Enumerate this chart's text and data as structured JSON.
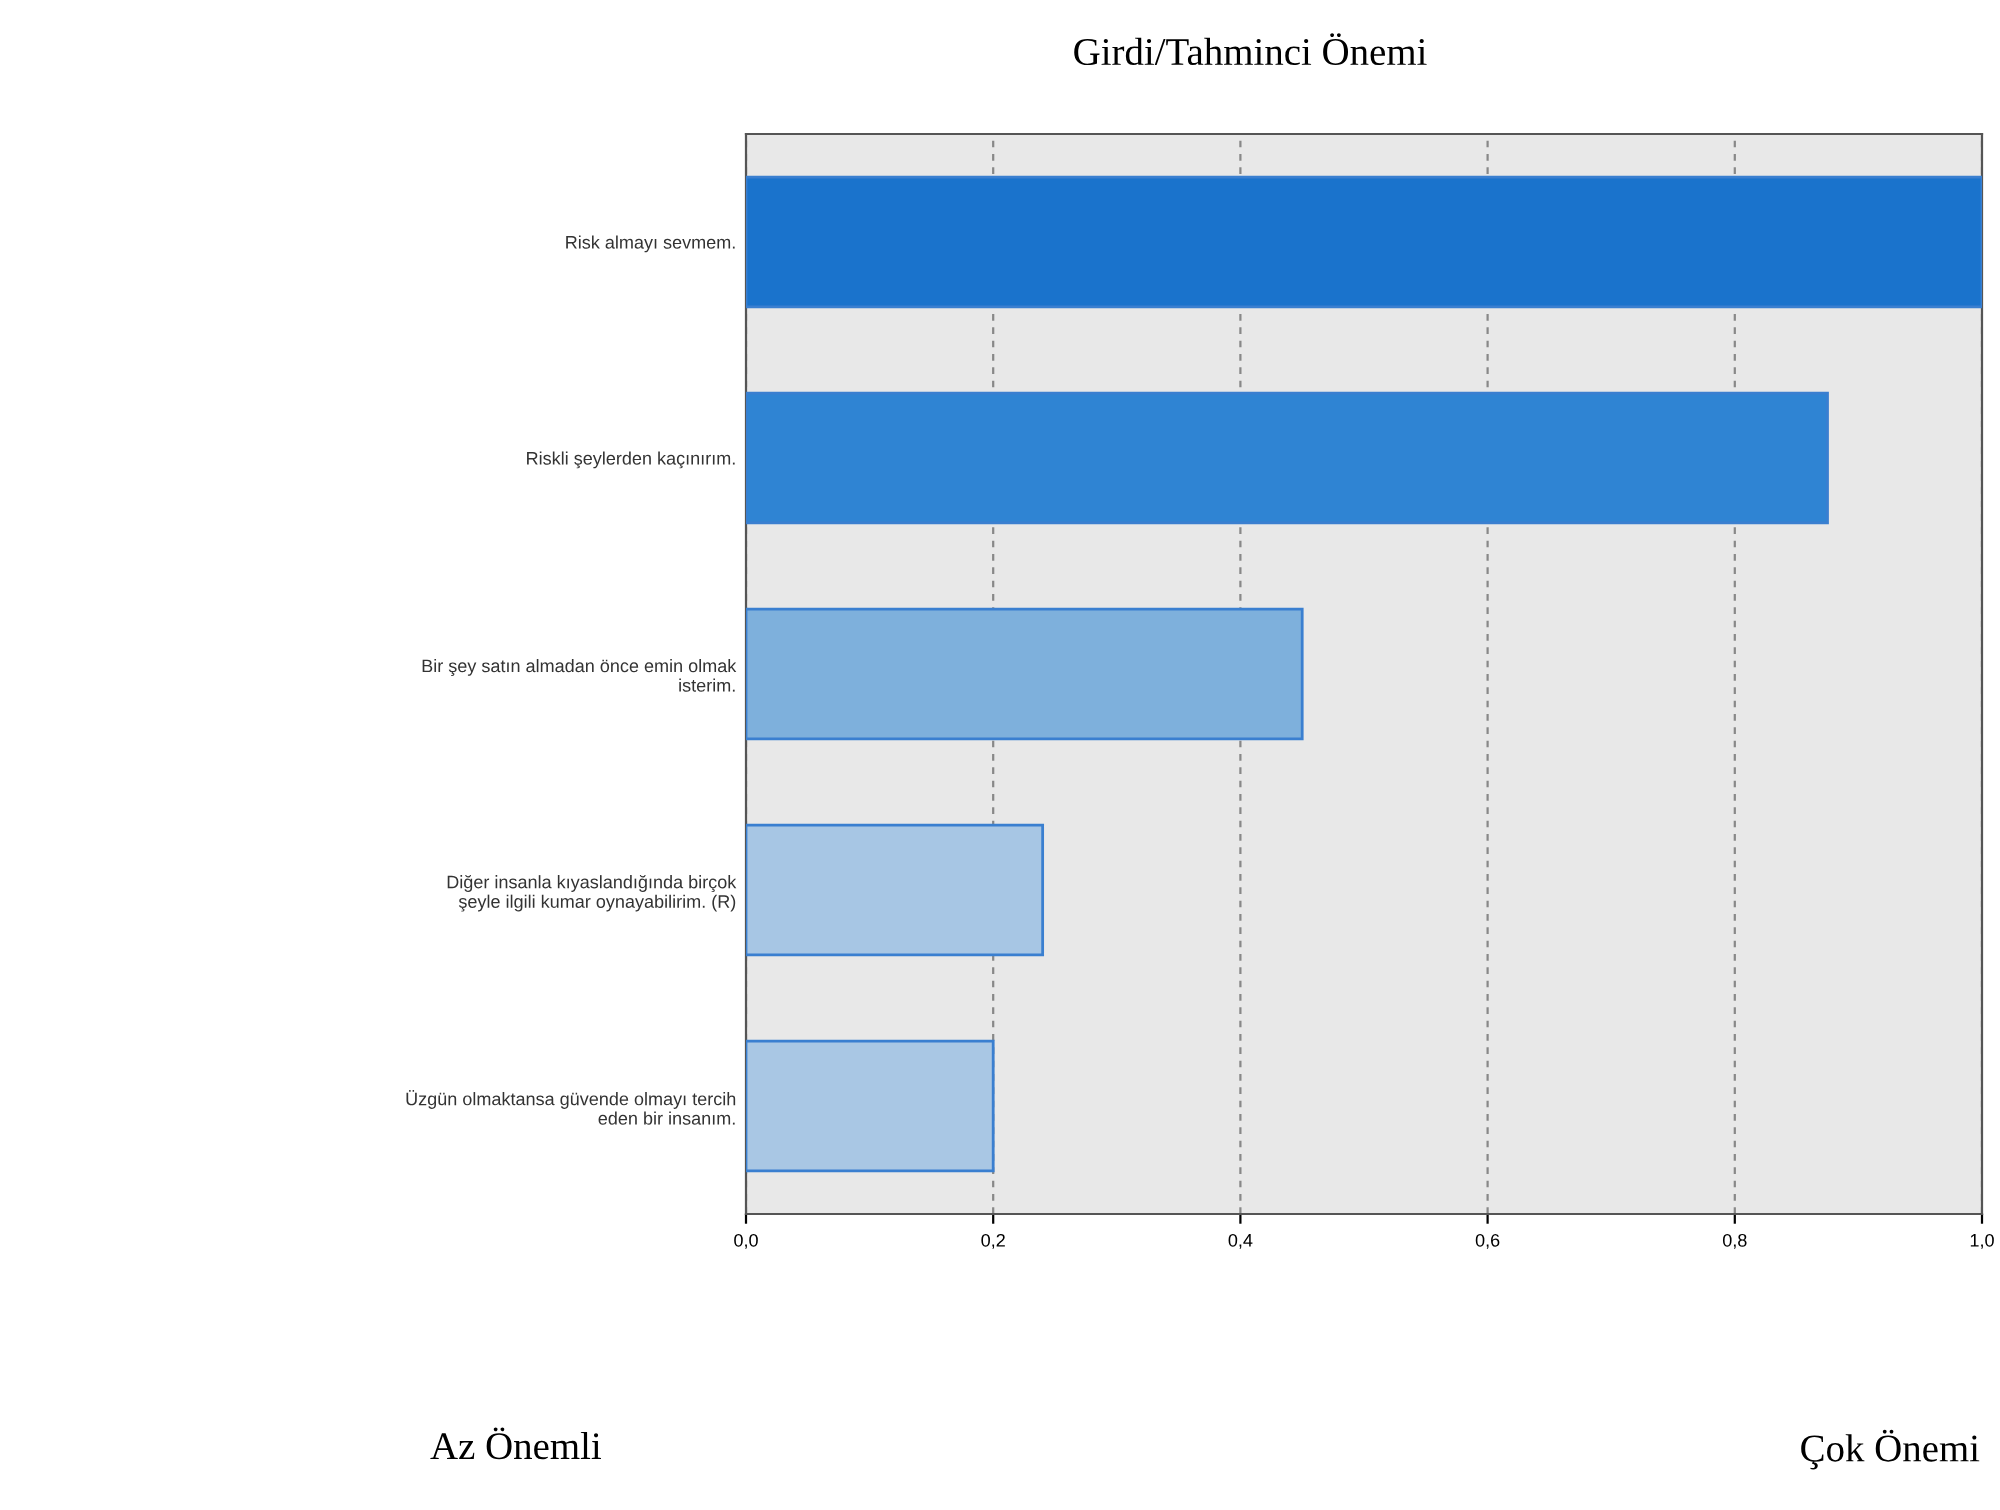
{
  "chart_data": {
    "type": "bar",
    "orientation": "horizontal",
    "title": "Girdi/Tahminci Önemi",
    "categories": [
      "Risk almayı sevmem.",
      "Riskli şeylerden kaçınırım.",
      "Bir şey satın almadan önce emin olmak\nisterim.",
      "Diğer insanla kıyaslandığında birçok\nşeyle ilgili kumar oynayabilirim. (R)",
      "Üzgün olmaktansa güvende olmayı tercih\neden bir insanım."
    ],
    "values": [
      1.0,
      0.875,
      0.45,
      0.24,
      0.2
    ],
    "colors": [
      "#1a73cc",
      "#2f84d3",
      "#7eb0dc",
      "#a7c6e4",
      "#a9c7e4"
    ],
    "xlim": [
      0,
      1
    ],
    "xticks": [
      {
        "value": 0,
        "label": "0,0"
      },
      {
        "value": 0.2,
        "label": "0,2"
      },
      {
        "value": 0.4,
        "label": "0,4"
      },
      {
        "value": 0.6,
        "label": "0,6"
      },
      {
        "value": 0.8,
        "label": "0,8"
      },
      {
        "value": 1,
        "label": "1,0"
      }
    ],
    "grid": "x",
    "annotations": [
      "Az Önemli",
      "Çok Önemi"
    ]
  }
}
